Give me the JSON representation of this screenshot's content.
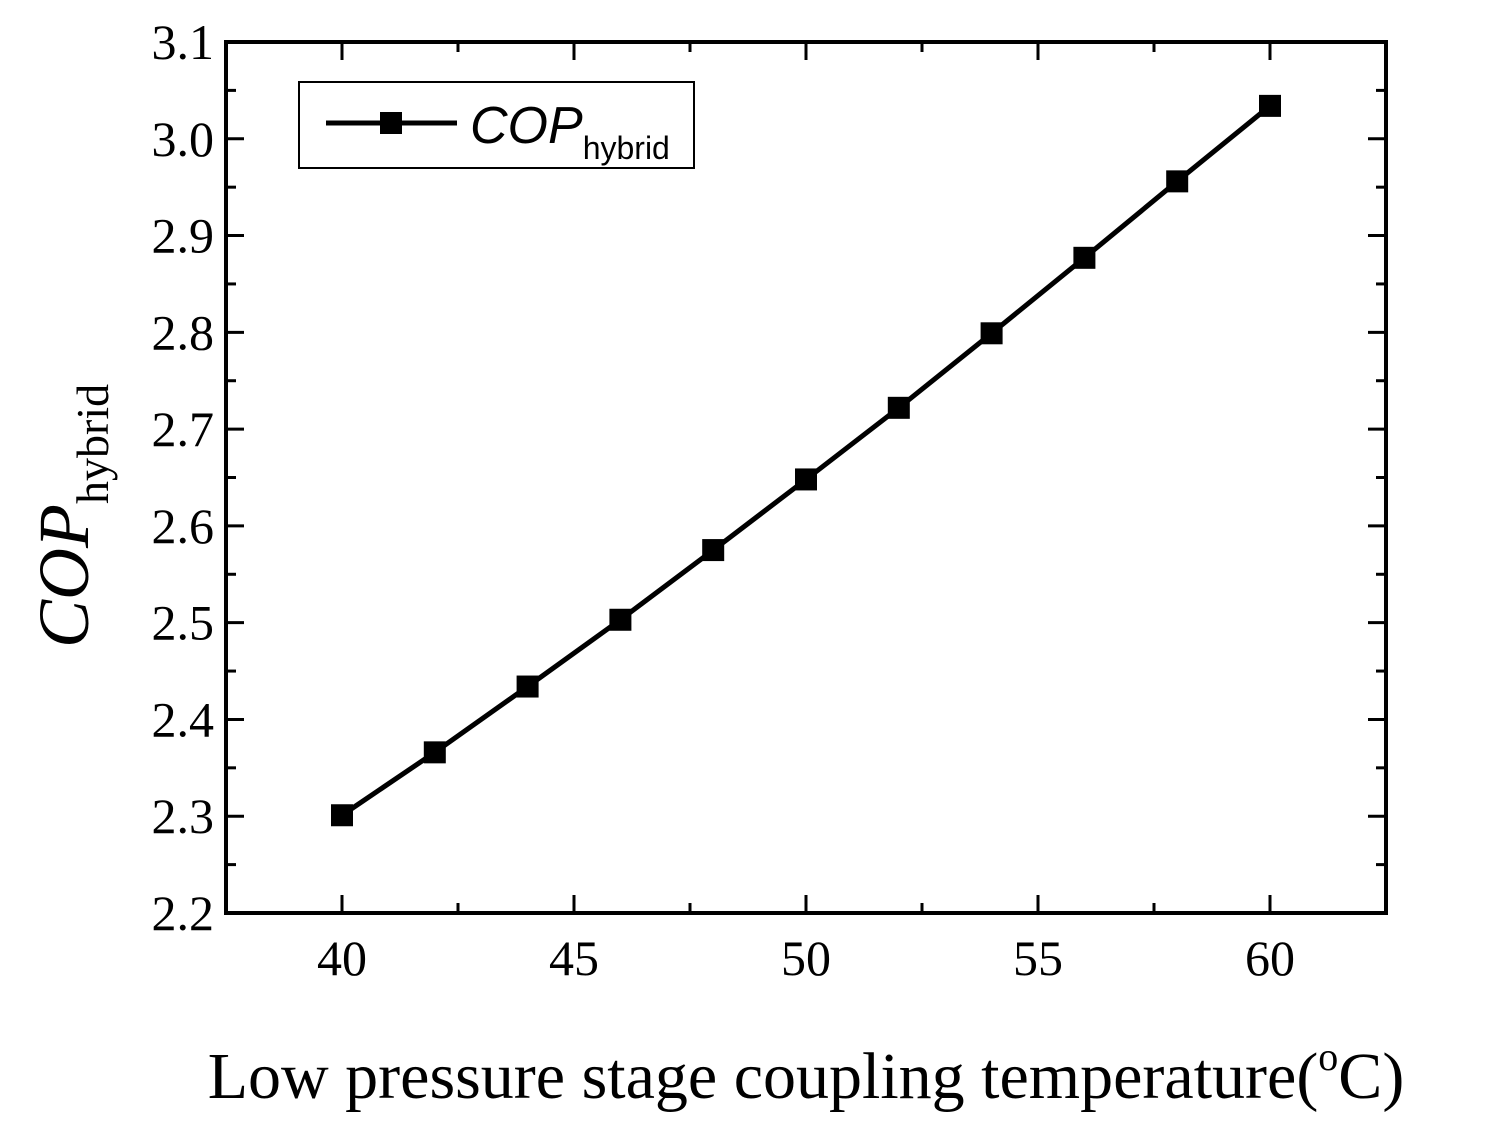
{
  "chart_data": {
    "type": "line",
    "title": "",
    "xlabel": "Low pressure stage coupling temperature",
    "xlabel_unit_open": "(",
    "xlabel_unit_sup": "o",
    "xlabel_unit_rest": "C)",
    "ylabel_main": "COP",
    "ylabel_sub": "hybrid",
    "xlim": [
      37.5,
      62.5
    ],
    "ylim": [
      2.2,
      3.1
    ],
    "xticks": [
      40,
      45,
      50,
      55,
      60
    ],
    "xtick_labels": [
      "40",
      "45",
      "50",
      "55",
      "60"
    ],
    "yticks": [
      2.2,
      2.3,
      2.4,
      2.5,
      2.6,
      2.7,
      2.8,
      2.9,
      3.0,
      3.1
    ],
    "ytick_labels": [
      "2.2",
      "2.3",
      "2.4",
      "2.5",
      "2.6",
      "2.7",
      "2.8",
      "2.9",
      "3.0",
      "3.1"
    ],
    "grid": false,
    "legend_position": "top-left",
    "series": [
      {
        "name_main": "COP",
        "name_sub": "hybrid",
        "marker": "square",
        "color": "#000000",
        "x": [
          40,
          42,
          44,
          46,
          48,
          50,
          52,
          54,
          56,
          58,
          60
        ],
        "y": [
          2.301,
          2.366,
          2.434,
          2.503,
          2.575,
          2.648,
          2.722,
          2.799,
          2.877,
          2.956,
          3.034
        ]
      }
    ]
  }
}
